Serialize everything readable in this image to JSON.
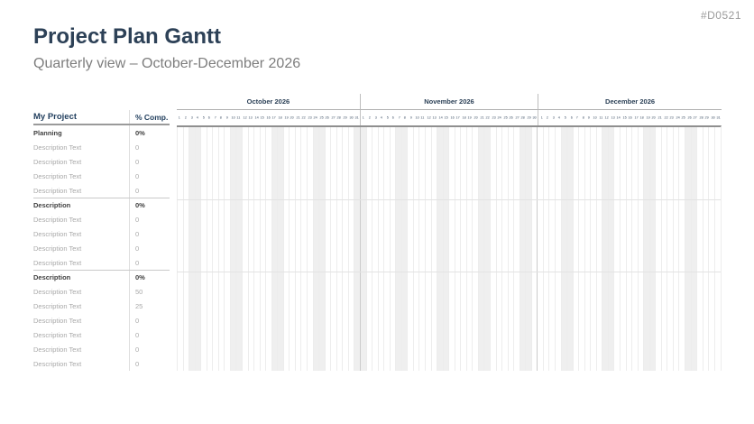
{
  "page": {
    "doc_code": "#D0521",
    "title": "Project Plan Gantt",
    "subtitle": "Quarterly view – October-December 2026"
  },
  "table": {
    "headers": {
      "task": "My Project",
      "completion": "% Comp."
    },
    "rows": [
      {
        "label": "Planning",
        "value": "0%",
        "type": "group"
      },
      {
        "label": "Description Text",
        "value": "0",
        "type": "task"
      },
      {
        "label": "Description Text",
        "value": "0",
        "type": "task"
      },
      {
        "label": "Description Text",
        "value": "0",
        "type": "task"
      },
      {
        "label": "Description Text",
        "value": "0",
        "type": "task"
      },
      {
        "label": "Description",
        "value": "0%",
        "type": "group"
      },
      {
        "label": "Description Text",
        "value": "0",
        "type": "task"
      },
      {
        "label": "Description Text",
        "value": "0",
        "type": "task"
      },
      {
        "label": "Description Text",
        "value": "0",
        "type": "task"
      },
      {
        "label": "Description Text",
        "value": "0",
        "type": "task"
      },
      {
        "label": "Description",
        "value": "0%",
        "type": "group"
      },
      {
        "label": "Description Text",
        "value": "50",
        "type": "task"
      },
      {
        "label": "Description Text",
        "value": "25",
        "type": "task"
      },
      {
        "label": "Description Text",
        "value": "0",
        "type": "task"
      },
      {
        "label": "Description Text",
        "value": "0",
        "type": "task"
      },
      {
        "label": "Description Text",
        "value": "0",
        "type": "task"
      },
      {
        "label": "Description Text",
        "value": "0",
        "type": "task"
      }
    ]
  },
  "timeline": {
    "months": [
      {
        "label": "October 2026",
        "days": 31,
        "weekend_days": [
          3,
          4,
          10,
          11,
          17,
          18,
          24,
          25,
          31
        ]
      },
      {
        "label": "November 2026",
        "days": 30,
        "weekend_days": [
          1,
          7,
          8,
          14,
          15,
          21,
          22,
          28,
          29
        ]
      },
      {
        "label": "December 2026",
        "days": 31,
        "weekend_days": [
          5,
          6,
          12,
          13,
          19,
          20,
          26,
          27
        ]
      }
    ]
  },
  "chart_data": {
    "type": "gantt",
    "title": "Project Plan Gantt",
    "subtitle": "Quarterly view – October-December 2026",
    "time_axis": {
      "months": [
        "October 2026",
        "November 2026",
        "December 2026"
      ],
      "days_per_month": [
        31,
        30,
        31
      ],
      "day_ticks": "1-31 per month",
      "weekend_shading": true
    },
    "tasks": [
      {
        "label": "Planning",
        "completion": 0
      },
      {
        "label": "Description Text",
        "completion": 0
      },
      {
        "label": "Description Text",
        "completion": 0
      },
      {
        "label": "Description Text",
        "completion": 0
      },
      {
        "label": "Description Text",
        "completion": 0
      },
      {
        "label": "Description",
        "completion": 0
      },
      {
        "label": "Description Text",
        "completion": 0
      },
      {
        "label": "Description Text",
        "completion": 0
      },
      {
        "label": "Description Text",
        "completion": 0
      },
      {
        "label": "Description Text",
        "completion": 0
      },
      {
        "label": "Description",
        "completion": 0
      },
      {
        "label": "Description Text",
        "completion": 50
      },
      {
        "label": "Description Text",
        "completion": 25
      },
      {
        "label": "Description Text",
        "completion": 0
      },
      {
        "label": "Description Text",
        "completion": 0
      },
      {
        "label": "Description Text",
        "completion": 0
      },
      {
        "label": "Description Text",
        "completion": 0
      }
    ],
    "bars": [],
    "legend": "none",
    "grid": "vertical day lines with weekend bands, horizontal group separators"
  },
  "colors": {
    "accent_navy": "#2d4157",
    "group_text": "#404040",
    "muted_text": "#a9a9a9",
    "subtitle_gray": "#7d7d7d",
    "weekend_fill": "#efefef",
    "header_rule": "#8f8f8f"
  }
}
